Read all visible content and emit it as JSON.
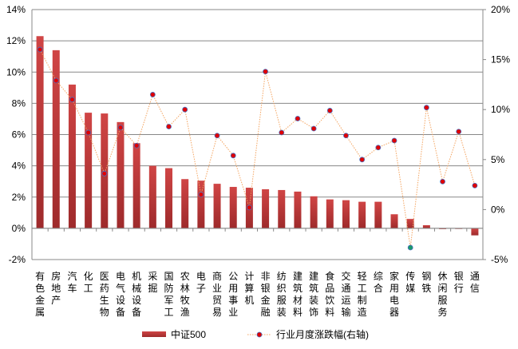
{
  "chart_data": {
    "type": "bar+line",
    "categories": [
      "有色金属",
      "房地产",
      "汽车",
      "化工",
      "医药生物",
      "电气设备",
      "机械设备",
      "采掘",
      "国防军工",
      "农林牧渔",
      "电子",
      "商业贸易",
      "公用事业",
      "计算机",
      "非银金融",
      "纺织服装",
      "建筑材料",
      "建筑装饰",
      "食品饮料",
      "交通运输",
      "轻工制造",
      "综合",
      "家用电器",
      "传媒",
      "钢铁",
      "休闲服务",
      "银行",
      "通信"
    ],
    "series": [
      {
        "name": "中证500",
        "type": "bar",
        "axis": "left",
        "color": "#c0393b",
        "values": [
          12.3,
          11.4,
          9.2,
          7.4,
          7.35,
          6.8,
          5.45,
          4.0,
          3.85,
          3.15,
          3.05,
          2.85,
          2.65,
          2.6,
          2.5,
          2.45,
          2.35,
          2.05,
          1.85,
          1.8,
          1.7,
          1.7,
          0.9,
          0.6,
          0.2,
          -0.05,
          0,
          -0.45
        ]
      },
      {
        "name": "行业月度涨跌幅(右轴)",
        "type": "line",
        "axis": "right",
        "color": "#f4a460",
        "marker": "#e00000",
        "values": [
          16.0,
          12.9,
          11.0,
          7.7,
          3.6,
          8.2,
          6.4,
          11.5,
          8.3,
          10.0,
          1.5,
          7.4,
          5.4,
          0.2,
          13.8,
          7.7,
          9.1,
          8.1,
          9.9,
          7.4,
          5.0,
          6.2,
          6.9,
          -3.8,
          10.2,
          2.8,
          7.8,
          2.4
        ]
      }
    ],
    "left_axis": {
      "min": -2,
      "max": 14,
      "step": 2,
      "ticks": [
        "-2%",
        "0%",
        "2%",
        "4%",
        "6%",
        "8%",
        "10%",
        "12%",
        "14%"
      ]
    },
    "right_axis": {
      "min": -5,
      "max": 20,
      "step": 5,
      "ticks": [
        "-5%",
        "0%",
        "5%",
        "10%",
        "15%",
        "20%"
      ]
    },
    "legend": {
      "position": "bottom",
      "items": [
        "中证500",
        "行业月度涨跌幅(右轴)"
      ]
    },
    "grid": true
  }
}
